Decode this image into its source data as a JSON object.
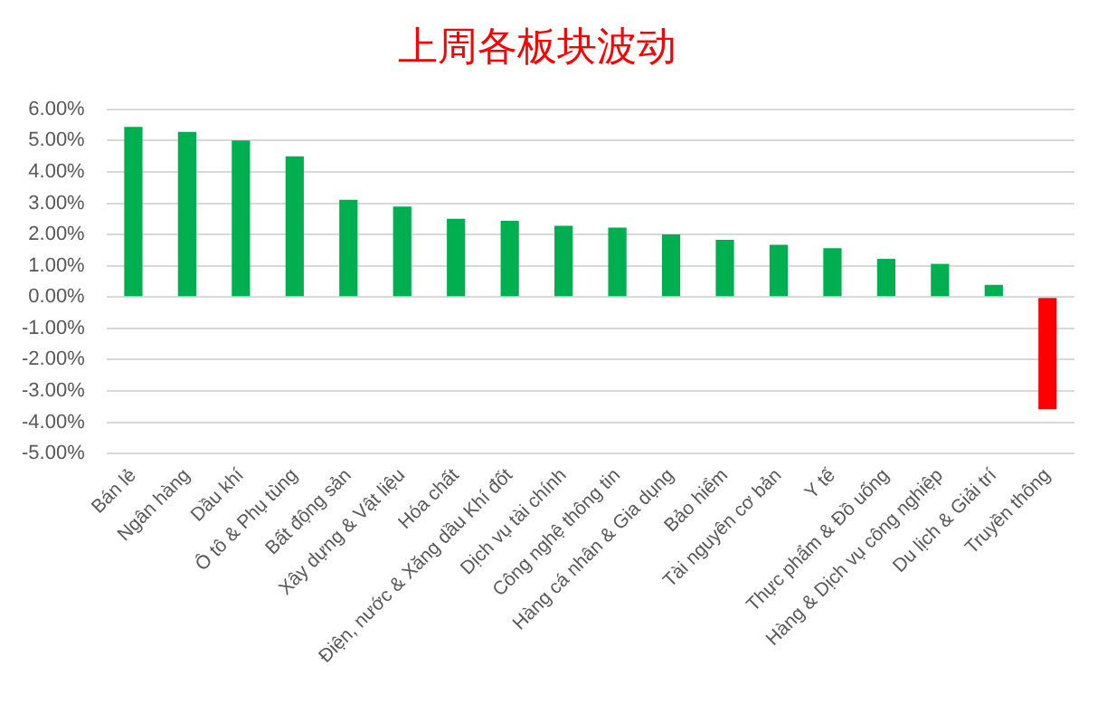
{
  "chart_data": {
    "type": "bar",
    "title": "上周各板块波动",
    "categories": [
      "Bán lẻ",
      "Ngân hàng",
      "Dầu khí",
      "Ô tô & Phụ tùng",
      "Bất động sản",
      "Xây dựng & Vật liệu",
      "Hóa chất",
      "Điện, nước & Xăng dầu Khí đốt",
      "Dịch vụ tài chính",
      "Công nghệ thông tin",
      "Hàng cá nhân & Gia dụng",
      "Bảo hiểm",
      "Tài nguyên cơ bản",
      "Y tế",
      "Thực phẩm & Đồ uống",
      "Hàng & Dịch vụ công nghiệp",
      "Du lịch & Giải trí",
      "Truyền thông"
    ],
    "values": [
      5.44,
      5.28,
      5.0,
      4.5,
      3.11,
      2.89,
      2.5,
      2.44,
      2.28,
      2.22,
      2.0,
      1.83,
      1.67,
      1.56,
      1.22,
      1.06,
      0.39,
      -3.59
    ],
    "colors": [
      "#00b050",
      "#00b050",
      "#00b050",
      "#00b050",
      "#00b050",
      "#00b050",
      "#00b050",
      "#00b050",
      "#00b050",
      "#00b050",
      "#00b050",
      "#00b050",
      "#00b050",
      "#00b050",
      "#00b050",
      "#00b050",
      "#00b050",
      "#ff0000"
    ],
    "ylim": [
      -5,
      6
    ],
    "yticks": [
      {
        "value": 6,
        "label": "6.00%"
      },
      {
        "value": 5,
        "label": "5.00%"
      },
      {
        "value": 4,
        "label": "4.00%"
      },
      {
        "value": 3,
        "label": "3.00%"
      },
      {
        "value": 2,
        "label": "2.00%"
      },
      {
        "value": 1,
        "label": "1.00%"
      },
      {
        "value": 0,
        "label": "0.00%"
      },
      {
        "value": -1,
        "label": "-1.00%"
      },
      {
        "value": -2,
        "label": "-2.00%"
      },
      {
        "value": -3,
        "label": "-3.00%"
      },
      {
        "value": -4,
        "label": "-4.00%"
      },
      {
        "value": -5,
        "label": "-5.00%"
      }
    ],
    "grid": "y"
  }
}
